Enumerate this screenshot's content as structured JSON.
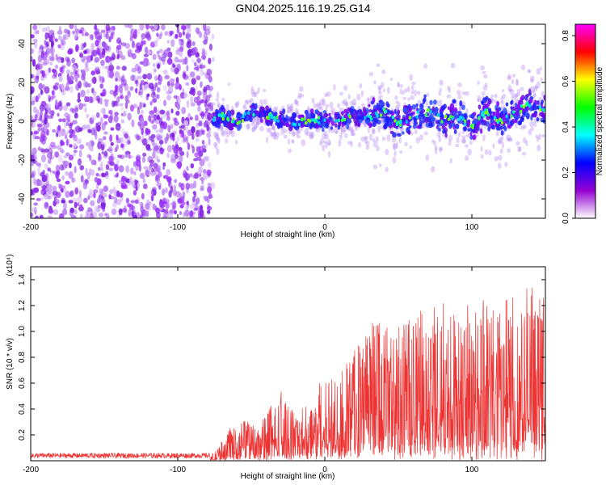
{
  "page": {
    "title": "GN04.2025.116.19.25.G14"
  },
  "chart_data": [
    {
      "type": "heatmap",
      "xlabel": "Height of straight line (km)",
      "ylabel": "Frequency (Hz)",
      "xlim": [
        -200,
        150
      ],
      "ylim": [
        -50,
        50
      ],
      "x_ticks": [
        -200,
        -100,
        0,
        100
      ],
      "y_ticks": [
        -40,
        -20,
        0,
        20,
        40
      ],
      "noise_region_x": [
        -200,
        -76
      ],
      "signal_centerline": [
        [
          -76,
          1
        ],
        [
          -70,
          3
        ],
        [
          -60,
          -1
        ],
        [
          -50,
          5
        ],
        [
          -40,
          3
        ],
        [
          -30,
          1
        ],
        [
          -20,
          -1
        ],
        [
          -10,
          1
        ],
        [
          0,
          0
        ],
        [
          10,
          1
        ],
        [
          20,
          3
        ],
        [
          30,
          2
        ],
        [
          40,
          5
        ],
        [
          50,
          -2
        ],
        [
          60,
          3
        ],
        [
          70,
          5
        ],
        [
          80,
          1
        ],
        [
          90,
          3
        ],
        [
          100,
          -3
        ],
        [
          110,
          5
        ],
        [
          120,
          -1
        ],
        [
          130,
          5
        ],
        [
          140,
          9
        ],
        [
          150,
          5
        ]
      ],
      "colorbar": {
        "label": "Normalized spectral amplitude",
        "range": [
          0.0,
          0.85
        ],
        "ticks": [
          "0.0",
          "0.2",
          "0.4",
          "0.6",
          "0.8"
        ],
        "stops": [
          "#ffffff",
          "#9400d3",
          "#0000ff",
          "#00ffff",
          "#00ff00",
          "#ffff00",
          "#ff0000",
          "#ff00ff"
        ]
      },
      "colors": {
        "noise": "#8a2be2",
        "signal_low": "#2020ff",
        "signal_high": "#00ffaa"
      }
    },
    {
      "type": "line",
      "xlabel": "Height of straight line (km)",
      "ylabel": "SNR (10 * v/v)",
      "yscale_note": "(x10⁴)",
      "xlim": [
        -200,
        150
      ],
      "ylim": [
        0,
        1.5
      ],
      "x_ticks": [
        -200,
        -100,
        0,
        100
      ],
      "y_ticks": [
        "0.2",
        "0.4",
        "0.6",
        "0.8",
        "1.0",
        "1.2",
        "1.4"
      ],
      "color": "#ee3333",
      "envelope": [
        {
          "x": -200,
          "y": 0.06
        },
        {
          "x": -80,
          "y": 0.05
        },
        {
          "x": -75,
          "y": 0.07
        },
        {
          "x": -65,
          "y": 0.25
        },
        {
          "x": -55,
          "y": 0.32
        },
        {
          "x": -45,
          "y": 0.28
        },
        {
          "x": -30,
          "y": 0.55
        },
        {
          "x": -20,
          "y": 0.35
        },
        {
          "x": -10,
          "y": 0.55
        },
        {
          "x": 0,
          "y": 0.65
        },
        {
          "x": 10,
          "y": 0.7
        },
        {
          "x": 20,
          "y": 0.85
        },
        {
          "x": 30,
          "y": 1.05
        },
        {
          "x": 40,
          "y": 1.15
        },
        {
          "x": 50,
          "y": 1.1
        },
        {
          "x": 60,
          "y": 1.2
        },
        {
          "x": 70,
          "y": 1.15
        },
        {
          "x": 80,
          "y": 1.25
        },
        {
          "x": 90,
          "y": 1.15
        },
        {
          "x": 100,
          "y": 1.25
        },
        {
          "x": 110,
          "y": 1.25
        },
        {
          "x": 120,
          "y": 1.35
        },
        {
          "x": 130,
          "y": 1.4
        },
        {
          "x": 140,
          "y": 1.45
        },
        {
          "x": 150,
          "y": 1.3
        }
      ]
    }
  ]
}
